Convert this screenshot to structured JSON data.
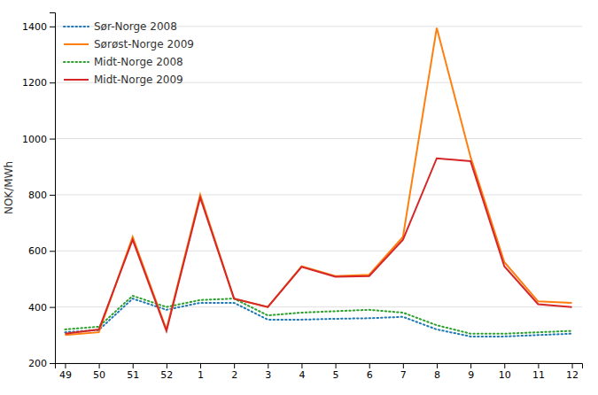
{
  "chart_data": {
    "type": "line",
    "y_label": "NOK/MWh",
    "categories": [
      "49",
      "50",
      "51",
      "52",
      "1",
      "2",
      "3",
      "4",
      "5",
      "6",
      "7",
      "8",
      "9",
      "10",
      "11",
      "12"
    ],
    "series": [
      {
        "name": "Sør-Norge 2008",
        "line_style": "dotted",
        "values": [
          310,
          318,
          430,
          390,
          415,
          415,
          355,
          355,
          358,
          360,
          365,
          320,
          295,
          295,
          300,
          305
        ]
      },
      {
        "name": "Sørøst-Norge 2009",
        "line_style": "solid",
        "values": [
          300,
          310,
          650,
          320,
          800,
          430,
          400,
          545,
          510,
          515,
          650,
          1395,
          935,
          560,
          420,
          415
        ]
      },
      {
        "name": "Midt-Norge 2008",
        "line_style": "dotted",
        "values": [
          320,
          330,
          440,
          400,
          425,
          430,
          370,
          380,
          385,
          390,
          380,
          335,
          305,
          305,
          310,
          315
        ]
      },
      {
        "name": "Midt-Norge 2009",
        "line_style": "solid",
        "values": [
          305,
          320,
          640,
          315,
          790,
          430,
          400,
          543,
          508,
          510,
          640,
          930,
          920,
          545,
          410,
          400
        ]
      }
    ],
    "ylim": [
      200,
      1450
    ],
    "yticks": [
      200,
      400,
      600,
      800,
      1000,
      1200,
      1400
    ],
    "grid": true,
    "legend": "upper left"
  }
}
